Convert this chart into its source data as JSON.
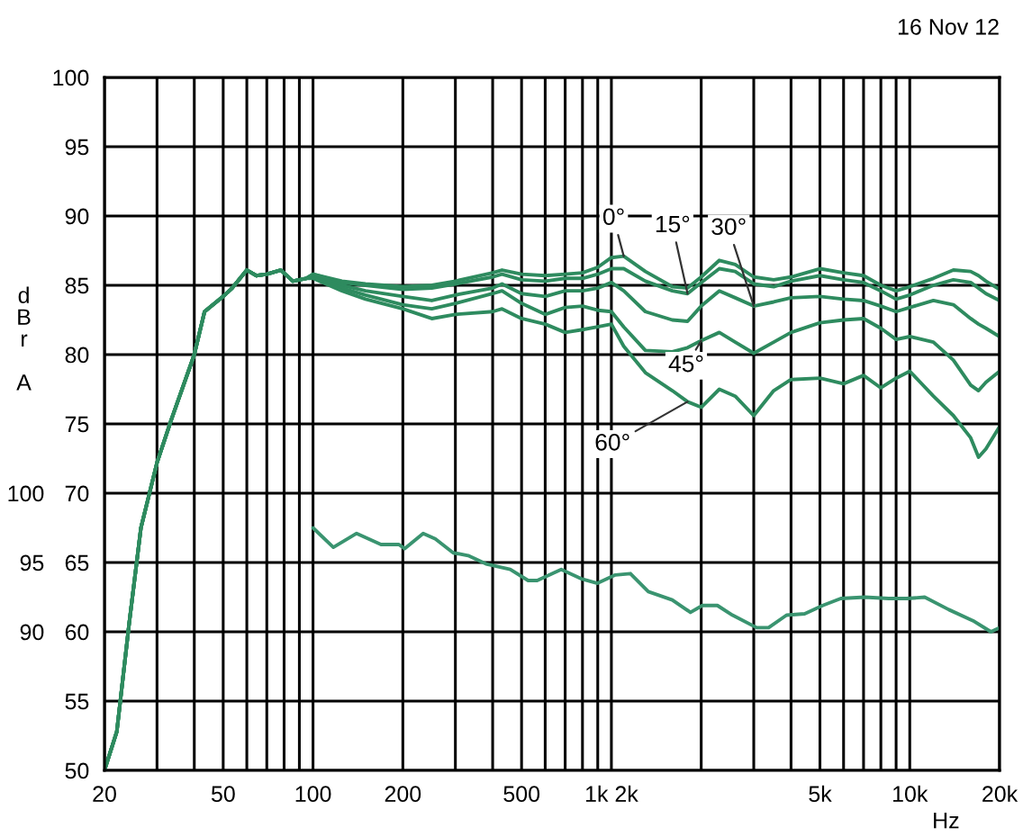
{
  "chart_data": {
    "type": "line",
    "xlabel": "Hz",
    "ylabel": "dBr A",
    "annotations": [
      "16 Nov 12"
    ],
    "x": [
      20,
      22,
      24.2,
      26.5,
      30,
      33.5,
      40,
      43.3,
      50,
      53.6,
      60,
      64.6,
      70,
      78,
      85.6,
      94.8,
      100,
      125,
      150,
      200,
      250,
      300,
      400,
      430,
      500,
      600,
      700,
      800,
      900,
      1000,
      1100,
      1300,
      1600,
      1800,
      2000,
      2300,
      2600,
      3000,
      3500,
      4000,
      5000,
      6000,
      7000,
      8000,
      9000,
      10000,
      12000,
      14000,
      16000,
      17000,
      18000,
      20000
    ],
    "series": [
      {
        "name": "0°",
        "color": "#2e8b5f",
        "values": [
          50,
          52.8,
          60.6,
          67.5,
          72.2,
          75.3,
          80.0,
          83.1,
          84.2,
          84.8,
          86.1,
          85.7,
          85.8,
          86.1,
          85.3,
          85.5,
          85.8,
          85.3,
          85.1,
          84.9,
          85.0,
          85.3,
          85.9,
          86.1,
          85.8,
          85.7,
          85.8,
          85.9,
          86.3,
          87.0,
          87.1,
          86.0,
          84.9,
          84.8,
          85.6,
          86.8,
          86.5,
          85.6,
          85.4,
          85.6,
          86.2,
          85.9,
          85.7,
          85.0,
          84.6,
          84.9,
          85.5,
          86.1,
          86.0,
          85.7,
          85.3,
          84.7
        ]
      },
      {
        "name": "15°",
        "color": "#2e8b5f",
        "values": [
          50,
          52.8,
          60.6,
          67.5,
          72.2,
          75.3,
          80.0,
          83.1,
          84.2,
          84.8,
          86.1,
          85.7,
          85.8,
          86.1,
          85.3,
          85.5,
          85.8,
          85.2,
          85.0,
          84.7,
          84.8,
          85.1,
          85.6,
          85.8,
          85.4,
          85.3,
          85.5,
          85.5,
          85.8,
          86.2,
          86.2,
          85.3,
          84.6,
          84.4,
          85.2,
          86.2,
          86.0,
          85.1,
          84.9,
          85.3,
          85.7,
          85.4,
          85.2,
          84.6,
          84.0,
          84.3,
          85.0,
          85.4,
          85.2,
          84.8,
          84.4,
          83.9
        ]
      },
      {
        "name": "30°",
        "color": "#2e8b5f",
        "values": [
          50,
          52.8,
          60.6,
          67.5,
          72.2,
          75.3,
          80.0,
          83.1,
          84.2,
          84.8,
          86.1,
          85.7,
          85.8,
          86.1,
          85.3,
          85.5,
          85.7,
          85.0,
          84.6,
          84.2,
          83.9,
          84.3,
          84.8,
          85.1,
          84.4,
          84.2,
          84.6,
          84.6,
          84.8,
          85.2,
          84.6,
          83.1,
          82.5,
          82.4,
          83.5,
          84.6,
          84.1,
          83.5,
          83.8,
          84.1,
          84.2,
          84.0,
          83.9,
          83.5,
          83.1,
          83.4,
          83.9,
          83.6,
          82.6,
          82.2,
          81.9,
          81.3
        ]
      },
      {
        "name": "45°",
        "color": "#2e8b5f",
        "values": [
          50,
          52.8,
          60.6,
          67.5,
          72.2,
          75.3,
          80.0,
          83.1,
          84.2,
          84.8,
          86.1,
          85.7,
          85.8,
          86.1,
          85.3,
          85.5,
          85.6,
          84.8,
          84.3,
          83.6,
          83.3,
          83.7,
          84.4,
          84.6,
          83.7,
          82.9,
          83.4,
          83.5,
          83.2,
          83.1,
          82.0,
          80.3,
          80.2,
          80.5,
          81.0,
          81.6,
          80.9,
          80.1,
          80.9,
          81.6,
          82.3,
          82.5,
          82.6,
          81.9,
          81.1,
          81.3,
          80.9,
          79.6,
          77.8,
          77.4,
          78.0,
          78.8
        ]
      },
      {
        "name": "60°",
        "color": "#2e8b5f",
        "values": [
          50,
          52.8,
          60.6,
          67.5,
          72.2,
          75.3,
          80.0,
          83.1,
          84.2,
          84.8,
          86.1,
          85.7,
          85.8,
          86.1,
          85.3,
          85.5,
          85.5,
          84.6,
          84.0,
          83.3,
          82.6,
          82.9,
          83.1,
          83.3,
          82.6,
          82.2,
          81.6,
          81.8,
          82.0,
          82.2,
          80.6,
          78.7,
          77.4,
          76.6,
          76.2,
          77.5,
          77.0,
          75.6,
          77.4,
          78.2,
          78.3,
          77.9,
          78.5,
          77.6,
          78.3,
          78.8,
          77.0,
          75.6,
          74.0,
          72.6,
          73.2,
          74.8
        ]
      },
      {
        "color": "#3a9470",
        "axis": "y2",
        "x": [
          100,
          117,
          140,
          169,
          194,
          203,
          234,
          257,
          295,
          331,
          380,
          458,
          526,
          564,
          679,
          798,
          898,
          1031,
          1158,
          1330,
          1600,
          1841,
          2019,
          2266,
          2547,
          3068,
          3365,
          3864,
          4444,
          5107,
          5873,
          7065,
          8499,
          9773,
          11220,
          13520,
          16290,
          18710,
          20000
        ],
        "values": [
          97.5,
          96.1,
          97.1,
          96.3,
          96.3,
          96.0,
          97.1,
          96.7,
          95.7,
          95.5,
          94.9,
          94.5,
          93.7,
          93.7,
          94.5,
          93.8,
          93.5,
          94.1,
          94.2,
          92.9,
          92.3,
          91.4,
          91.9,
          91.9,
          91.2,
          90.3,
          90.3,
          91.2,
          91.3,
          91.9,
          92.4,
          92.5,
          92.4,
          92.4,
          92.5,
          91.6,
          90.8,
          90.0,
          90.3
        ]
      }
    ],
    "log": "x",
    "xlim": [
      20,
      20000
    ],
    "xticks": [
      20,
      {
        "value": 30,
        "label": null
      },
      {
        "value": 40,
        "label": null
      },
      50,
      {
        "value": 60,
        "label": null
      },
      {
        "value": 70,
        "label": null
      },
      {
        "value": 80,
        "label": null
      },
      {
        "value": 90,
        "label": null
      },
      100,
      200,
      {
        "value": 300,
        "label": null
      },
      {
        "value": 400,
        "label": null
      },
      500,
      {
        "value": 600,
        "label": null
      },
      {
        "value": 700,
        "label": null
      },
      {
        "value": 800,
        "label": null
      },
      {
        "value": 900,
        "label": null
      },
      {
        "value": 1000,
        "label": "1k 2k"
      },
      {
        "value": 2000,
        "label": null
      },
      {
        "value": 3000,
        "label": null
      },
      {
        "value": 4000,
        "label": null
      },
      {
        "value": 5000,
        "label": "5k"
      },
      {
        "value": 6000,
        "label": null
      },
      {
        "value": 7000,
        "label": null
      },
      {
        "value": 8000,
        "label": null
      },
      {
        "value": 9000,
        "label": null
      },
      {
        "value": 10000,
        "label": "10k"
      },
      {
        "value": 20000,
        "label": "20k"
      }
    ],
    "ylim": [
      50,
      100
    ],
    "yticks": [
      50,
      55,
      60,
      65,
      70,
      75,
      80,
      85,
      90,
      95,
      100
    ],
    "y2lim": [
      80,
      130
    ],
    "y2ticks": [
      90,
      95,
      100
    ],
    "grid": true,
    "line_style": "solid"
  }
}
